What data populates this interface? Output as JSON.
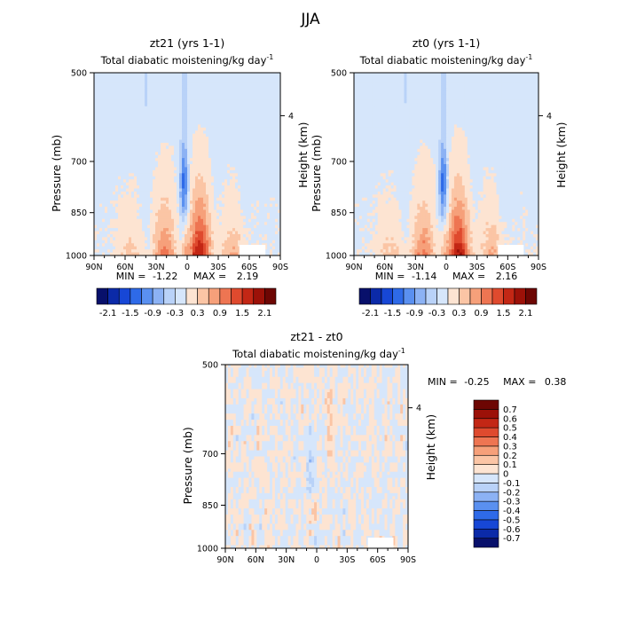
{
  "figure": {
    "season": "JJA",
    "variable": "Total diabatic moistening/kg day",
    "unit_exponent": "-1"
  },
  "chart_data": [
    {
      "type": "heatmap",
      "subtitle": "zt21 (yrs 1-1)",
      "title": "Total diabatic moistening/kg day⁻¹",
      "xlabel": "",
      "ylabel": "Pressure (mb)",
      "ylabel_right": "Height (km)",
      "x_ticks": [
        "90N",
        "60N",
        "30N",
        "0",
        "30S",
        "60S",
        "90S"
      ],
      "x_values": [
        90,
        60,
        30,
        0,
        -30,
        -60,
        -90
      ],
      "y_ticks": [
        "500",
        "700",
        "850",
        "1000"
      ],
      "y_values": [
        500,
        700,
        850,
        1000
      ],
      "right_ticks": [
        "4"
      ],
      "right_values": [
        4
      ],
      "ylim": [
        1000,
        500
      ],
      "xlim": [
        90,
        -90
      ],
      "min_label": "MIN =",
      "min": "-1.22",
      "max_label": "MAX =",
      "max": "2.19",
      "colorbar": {
        "levels": [
          -2.1,
          -1.8,
          -1.5,
          -1.2,
          -0.9,
          -0.6,
          -0.3,
          0,
          0.3,
          0.6,
          0.9,
          1.2,
          1.5,
          1.8,
          2.1
        ],
        "labels": [
          "-2.1",
          "-1.5",
          "-0.9",
          "-0.3",
          "0.3",
          "0.9",
          "1.5",
          "2.1"
        ],
        "colors": [
          "#08106b",
          "#0b2aa8",
          "#1747d6",
          "#2e6ae8",
          "#5a90f0",
          "#8cb2f4",
          "#b9d2f8",
          "#d6e6fb",
          "#fde4d2",
          "#fbc5a5",
          "#f6a07a",
          "#ee7552",
          "#df4a2e",
          "#c32715",
          "#9c1108",
          "#6d0603"
        ]
      }
    },
    {
      "type": "heatmap",
      "subtitle": "zt0 (yrs 1-1)",
      "title": "Total diabatic moistening/kg day⁻¹",
      "xlabel": "",
      "ylabel": "Pressure (mb)",
      "ylabel_right": "Height (km)",
      "x_ticks": [
        "90N",
        "60N",
        "30N",
        "0",
        "30S",
        "60S",
        "90S"
      ],
      "x_values": [
        90,
        60,
        30,
        0,
        -30,
        -60,
        -90
      ],
      "y_ticks": [
        "500",
        "700",
        "850",
        "1000"
      ],
      "y_values": [
        500,
        700,
        850,
        1000
      ],
      "right_ticks": [
        "4"
      ],
      "right_values": [
        4
      ],
      "ylim": [
        1000,
        500
      ],
      "xlim": [
        90,
        -90
      ],
      "min_label": "MIN =",
      "min": "-1.14",
      "max_label": "MAX =",
      "max": "2.16",
      "colorbar": {
        "levels": [
          -2.1,
          -1.8,
          -1.5,
          -1.2,
          -0.9,
          -0.6,
          -0.3,
          0,
          0.3,
          0.6,
          0.9,
          1.2,
          1.5,
          1.8,
          2.1
        ],
        "labels": [
          "-2.1",
          "-1.5",
          "-0.9",
          "-0.3",
          "0.3",
          "0.9",
          "1.5",
          "2.1"
        ],
        "colors": [
          "#08106b",
          "#0b2aa8",
          "#1747d6",
          "#2e6ae8",
          "#5a90f0",
          "#8cb2f4",
          "#b9d2f8",
          "#d6e6fb",
          "#fde4d2",
          "#fbc5a5",
          "#f6a07a",
          "#ee7552",
          "#df4a2e",
          "#c32715",
          "#9c1108",
          "#6d0603"
        ]
      }
    },
    {
      "type": "heatmap",
      "subtitle": "zt21 - zt0",
      "title": "Total diabatic moistening/kg day⁻¹",
      "xlabel": "",
      "ylabel": "Pressure (mb)",
      "ylabel_right": "Height (km)",
      "x_ticks": [
        "90N",
        "60N",
        "30N",
        "0",
        "30S",
        "60S",
        "90S"
      ],
      "x_values": [
        90,
        60,
        30,
        0,
        -30,
        -60,
        -90
      ],
      "y_ticks": [
        "500",
        "700",
        "850",
        "1000"
      ],
      "y_values": [
        500,
        700,
        850,
        1000
      ],
      "right_ticks": [
        "4"
      ],
      "right_values": [
        4
      ],
      "ylim": [
        1000,
        500
      ],
      "xlim": [
        90,
        -90
      ],
      "min_label": "MIN =",
      "min": "-0.25",
      "max_label": "MAX =",
      "max": "0.38",
      "colorbar": {
        "levels": [
          -0.7,
          -0.6,
          -0.5,
          -0.4,
          -0.3,
          -0.2,
          -0.1,
          0,
          0.1,
          0.2,
          0.3,
          0.4,
          0.5,
          0.6,
          0.7
        ],
        "labels": [
          "-0.7",
          "-0.6",
          "-0.5",
          "-0.4",
          "-0.3",
          "-0.2",
          "-0.1",
          "0",
          "0.1",
          "0.2",
          "0.3",
          "0.4",
          "0.5",
          "0.6",
          "0.7"
        ],
        "colors": [
          "#08106b",
          "#0b2aa8",
          "#1747d6",
          "#2e6ae8",
          "#5a90f0",
          "#8cb2f4",
          "#b9d2f8",
          "#d6e6fb",
          "#fde4d2",
          "#fbc5a5",
          "#f6a07a",
          "#ee7552",
          "#df4a2e",
          "#c32715",
          "#9c1108",
          "#6d0603"
        ]
      }
    }
  ]
}
